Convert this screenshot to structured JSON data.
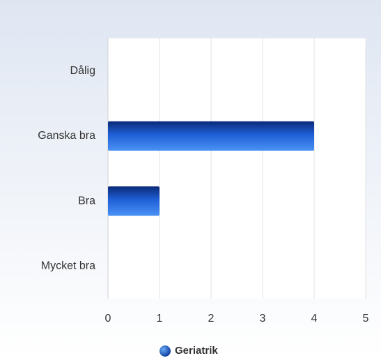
{
  "chart_data": {
    "type": "bar",
    "orientation": "horizontal",
    "categories": [
      "Dålig",
      "Ganska bra",
      "Bra",
      "Mycket bra"
    ],
    "series": [
      {
        "name": "Geriatrik",
        "color": "#2a6fe0",
        "values": [
          0,
          4,
          1,
          0
        ]
      }
    ],
    "xlim": [
      0,
      5
    ],
    "xticks": [
      0,
      1,
      2,
      3,
      4,
      5
    ],
    "grid": true,
    "legend": "bottom"
  }
}
